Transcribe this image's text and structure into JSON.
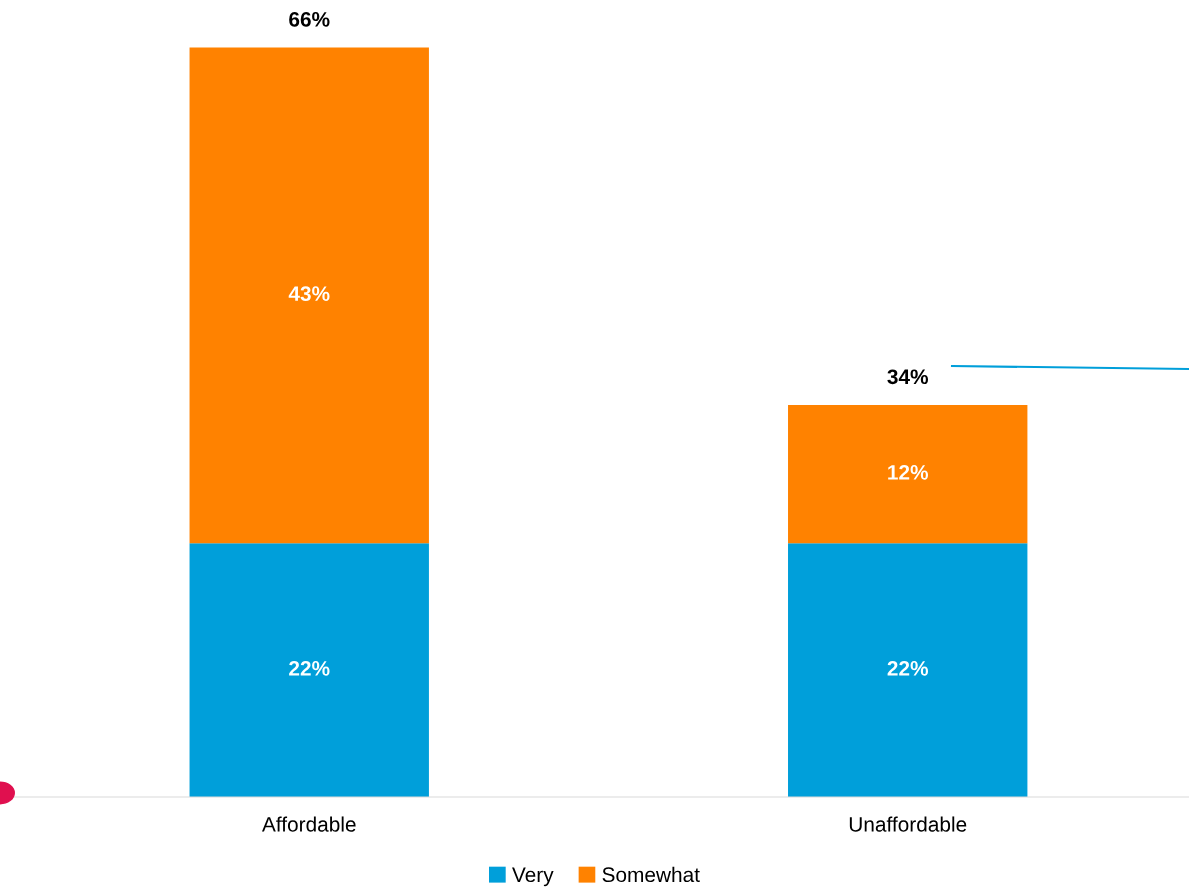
{
  "chart_data": {
    "type": "bar",
    "stacked": true,
    "categories": [
      "Affordable",
      "Unaffordable"
    ],
    "series": [
      {
        "name": "Very",
        "color": "#009fda",
        "values": [
          22,
          22
        ],
        "value_labels": [
          "22%",
          "22%"
        ]
      },
      {
        "name": "Somewhat",
        "color": "#ff8200",
        "values": [
          43,
          12
        ],
        "value_labels": [
          "43%",
          "12%"
        ]
      }
    ],
    "totals": [
      "66%",
      "34%"
    ],
    "legend": "bottom",
    "grid": false
  }
}
